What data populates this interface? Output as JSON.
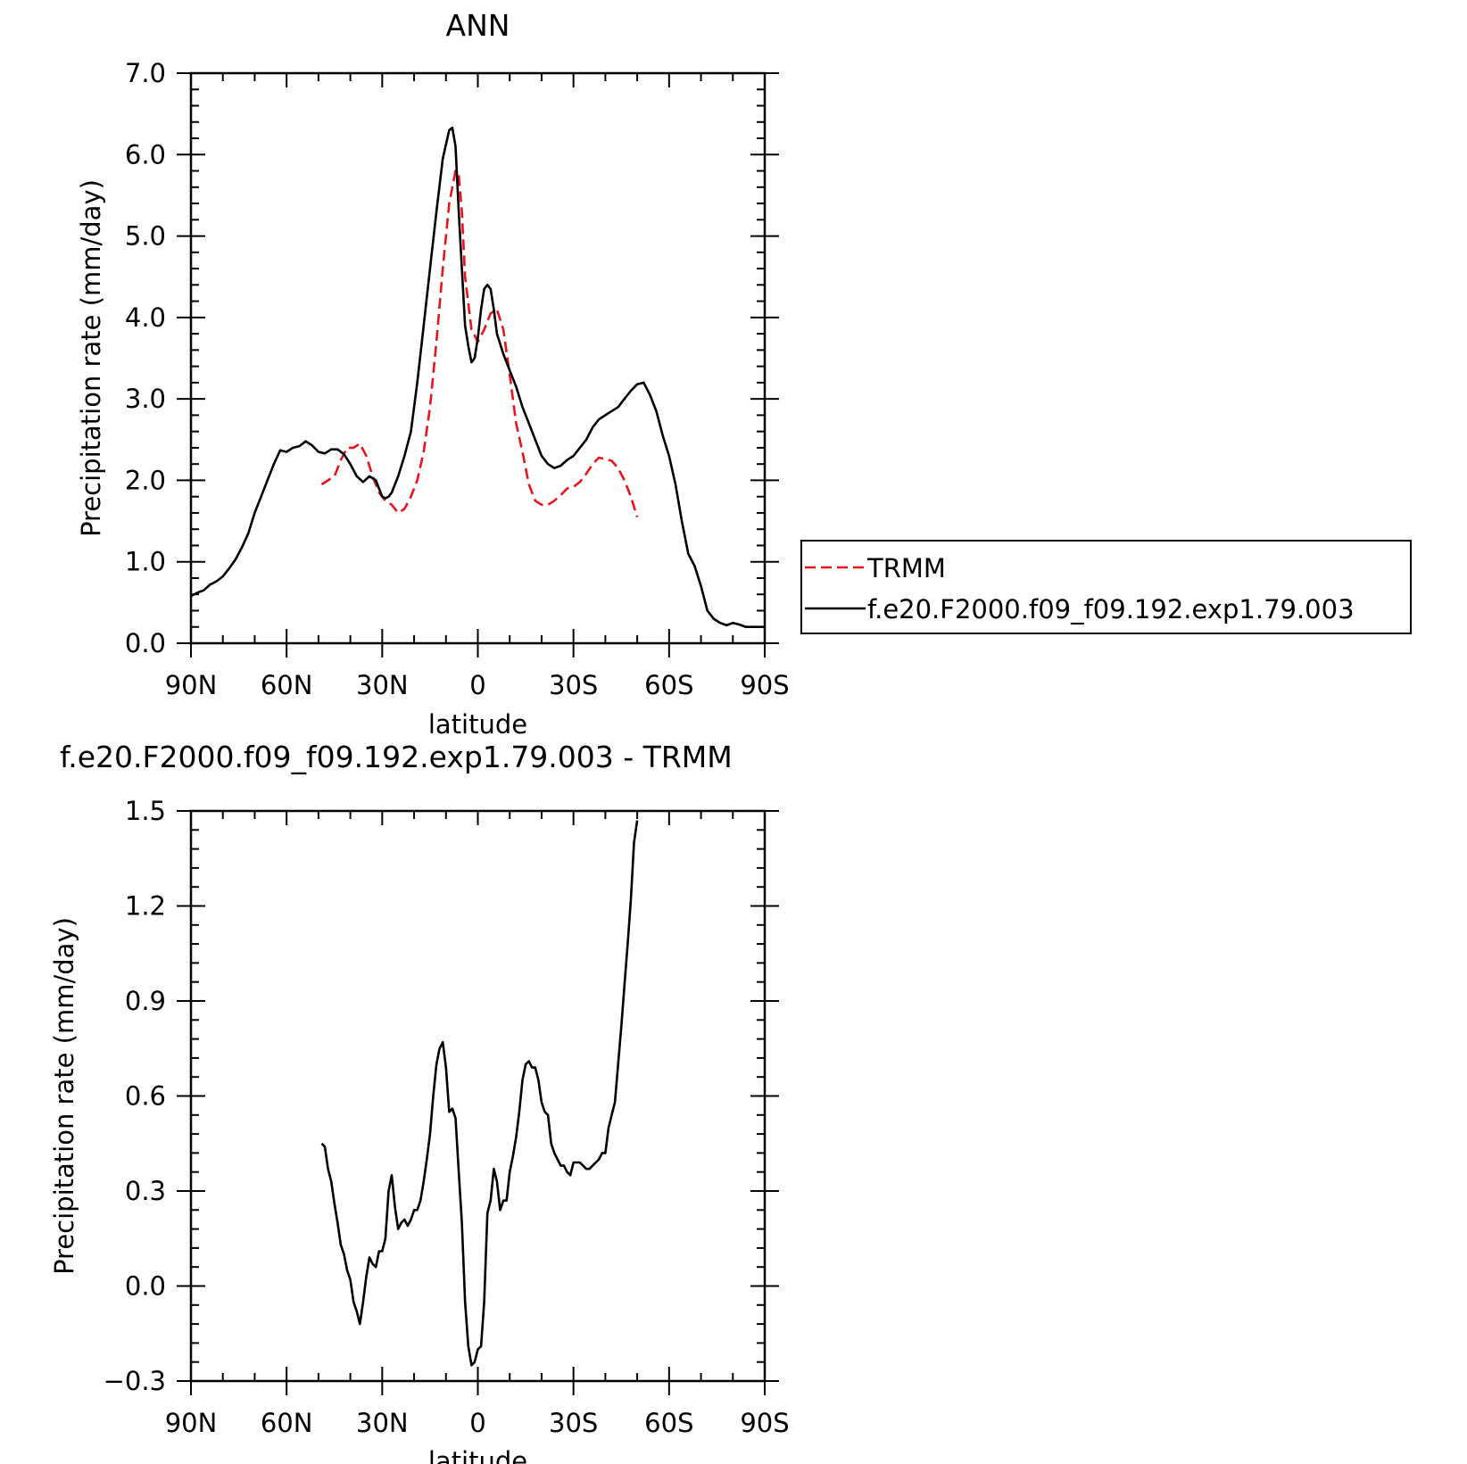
{
  "chart_data": [
    {
      "type": "line",
      "title": "ANN",
      "xlabel": "latitude",
      "ylabel": "Precipitation rate (mm/day)",
      "xlim": [
        90,
        -90
      ],
      "ylim": [
        0,
        7
      ],
      "x_ticks": [
        {
          "v": 90,
          "label": "90N"
        },
        {
          "v": 60,
          "label": "60N"
        },
        {
          "v": 30,
          "label": "30N"
        },
        {
          "v": 0,
          "label": "0"
        },
        {
          "v": -30,
          "label": "30S"
        },
        {
          "v": -60,
          "label": "60S"
        },
        {
          "v": -90,
          "label": "90S"
        }
      ],
      "y_ticks": [
        {
          "v": 0,
          "label": "0.0"
        },
        {
          "v": 1,
          "label": "1.0"
        },
        {
          "v": 2,
          "label": "2.0"
        },
        {
          "v": 3,
          "label": "3.0"
        },
        {
          "v": 4,
          "label": "4.0"
        },
        {
          "v": 5,
          "label": "5.0"
        },
        {
          "v": 6,
          "label": "6.0"
        },
        {
          "v": 7,
          "label": "7.0"
        }
      ],
      "legend": "right",
      "series": [
        {
          "name": "TRMM",
          "color": "#e8141c",
          "dash": true,
          "x": [
            49,
            47,
            45,
            43,
            41,
            39,
            37,
            35,
            33,
            31,
            29,
            27,
            25,
            23,
            21,
            19,
            17,
            15,
            13,
            11,
            9,
            7,
            6,
            5,
            4,
            2,
            0,
            -2,
            -4,
            -6,
            -8,
            -10,
            -12,
            -14,
            -16,
            -18,
            -20,
            -22,
            -24,
            -26,
            -28,
            -30,
            -32,
            -34,
            -36,
            -38,
            -40,
            -42,
            -44,
            -46,
            -48,
            -50
          ],
          "y": [
            1.95,
            2.0,
            2.05,
            2.25,
            2.4,
            2.4,
            2.45,
            2.3,
            2.05,
            1.85,
            1.75,
            1.7,
            1.6,
            1.65,
            1.8,
            2.0,
            2.35,
            2.9,
            3.7,
            4.6,
            5.4,
            5.8,
            5.75,
            5.3,
            4.5,
            3.85,
            3.7,
            3.85,
            4.05,
            4.1,
            3.85,
            3.3,
            2.7,
            2.35,
            1.95,
            1.75,
            1.7,
            1.7,
            1.75,
            1.82,
            1.9,
            1.92,
            1.98,
            2.08,
            2.2,
            2.28,
            2.26,
            2.24,
            2.15,
            2.0,
            1.8,
            1.55
          ]
        },
        {
          "name": "f.e20.F2000.f09_f09.192.exp1.79.003",
          "color": "#000000",
          "dash": false,
          "x": [
            90,
            88,
            86,
            84,
            82,
            80,
            78,
            76,
            74,
            72,
            70,
            68,
            66,
            64,
            62,
            60,
            58,
            56,
            54,
            52,
            50,
            48,
            46,
            44,
            42,
            40,
            38,
            36,
            34,
            32,
            31,
            30,
            29,
            28,
            27,
            26,
            25,
            23,
            21,
            19,
            17,
            15,
            13,
            11,
            9,
            8,
            7,
            6,
            5,
            4,
            3,
            2,
            1,
            0,
            -1,
            -2,
            -3,
            -4,
            -5,
            -6,
            -8,
            -10,
            -12,
            -14,
            -16,
            -18,
            -20,
            -22,
            -24,
            -26,
            -28,
            -30,
            -32,
            -34,
            -36,
            -38,
            -40,
            -42,
            -44,
            -46,
            -48,
            -50,
            -52,
            -54,
            -56,
            -58,
            -60,
            -62,
            -64,
            -66,
            -68,
            -70,
            -72,
            -74,
            -76,
            -78,
            -80,
            -82,
            -84,
            -86,
            -88,
            -90
          ],
          "y": [
            0.58,
            0.62,
            0.65,
            0.72,
            0.76,
            0.82,
            0.92,
            1.03,
            1.18,
            1.35,
            1.6,
            1.8,
            2.0,
            2.2,
            2.37,
            2.35,
            2.4,
            2.42,
            2.48,
            2.43,
            2.35,
            2.33,
            2.38,
            2.38,
            2.32,
            2.2,
            2.05,
            1.98,
            2.05,
            2.0,
            1.9,
            1.8,
            1.78,
            1.8,
            1.85,
            1.95,
            2.05,
            2.3,
            2.6,
            3.2,
            3.9,
            4.6,
            5.3,
            5.95,
            6.3,
            6.33,
            6.1,
            5.3,
            4.6,
            3.9,
            3.65,
            3.45,
            3.5,
            3.75,
            4.1,
            4.35,
            4.4,
            4.35,
            4.1,
            3.8,
            3.55,
            3.35,
            3.15,
            2.9,
            2.7,
            2.5,
            2.3,
            2.2,
            2.15,
            2.18,
            2.25,
            2.3,
            2.4,
            2.5,
            2.65,
            2.75,
            2.8,
            2.85,
            2.9,
            3.0,
            3.1,
            3.18,
            3.2,
            3.05,
            2.85,
            2.55,
            2.3,
            1.95,
            1.5,
            1.1,
            0.95,
            0.7,
            0.4,
            0.3,
            0.25,
            0.22,
            0.25,
            0.23,
            0.2,
            0.2,
            0.2,
            0.2
          ]
        }
      ]
    },
    {
      "type": "line",
      "title": "f.e20.F2000.f09_f09.192.exp1.79.003 - TRMM",
      "xlabel": "latitude",
      "ylabel": "Precipitation rate (mm/day)",
      "xlim": [
        90,
        -90
      ],
      "ylim": [
        -0.3,
        1.5
      ],
      "x_ticks": [
        {
          "v": 90,
          "label": "90N"
        },
        {
          "v": 60,
          "label": "60N"
        },
        {
          "v": 30,
          "label": "30N"
        },
        {
          "v": 0,
          "label": "0"
        },
        {
          "v": -30,
          "label": "30S"
        },
        {
          "v": -60,
          "label": "60S"
        },
        {
          "v": -90,
          "label": "90S"
        }
      ],
      "y_ticks": [
        {
          "v": -0.3,
          "label": "−0.3"
        },
        {
          "v": 0,
          "label": "0.0"
        },
        {
          "v": 0.3,
          "label": "0.3"
        },
        {
          "v": 0.6,
          "label": "0.6"
        },
        {
          "v": 0.9,
          "label": "0.9"
        },
        {
          "v": 1.2,
          "label": "1.2"
        },
        {
          "v": 1.5,
          "label": "1.5"
        }
      ],
      "series": [
        {
          "color": "#000000",
          "dash": false,
          "x": [
            49,
            48,
            47,
            46,
            45,
            44,
            43,
            42,
            41,
            40,
            39,
            38,
            37,
            36,
            35,
            34,
            33,
            32,
            31,
            30,
            29,
            28,
            27,
            26,
            25,
            24,
            23,
            22,
            21,
            20,
            19,
            18,
            17,
            16,
            15,
            14,
            13,
            12,
            11,
            10,
            9,
            8,
            7,
            6,
            5,
            4,
            3,
            2,
            1,
            0,
            -1,
            -2,
            -3,
            -4,
            -5,
            -6,
            -7,
            -8,
            -9,
            -10,
            -11,
            -12,
            -13,
            -14,
            -15,
            -16,
            -17,
            -18,
            -19,
            -20,
            -21,
            -22,
            -23,
            -24,
            -25,
            -26,
            -27,
            -28,
            -29,
            -30,
            -31,
            -32,
            -33,
            -34,
            -35,
            -36,
            -37,
            -38,
            -39,
            -40,
            -41,
            -42,
            -43,
            -44,
            -45,
            -46,
            -47,
            -48,
            -49,
            -50
          ],
          "y": [
            0.45,
            0.44,
            0.37,
            0.33,
            0.26,
            0.2,
            0.13,
            0.1,
            0.05,
            0.02,
            -0.05,
            -0.08,
            -0.12,
            -0.05,
            0.03,
            0.09,
            0.07,
            0.06,
            0.11,
            0.11,
            0.15,
            0.3,
            0.35,
            0.25,
            0.18,
            0.2,
            0.21,
            0.19,
            0.21,
            0.24,
            0.24,
            0.27,
            0.33,
            0.4,
            0.48,
            0.6,
            0.7,
            0.75,
            0.77,
            0.69,
            0.55,
            0.56,
            0.53,
            0.36,
            0.2,
            -0.05,
            -0.19,
            -0.25,
            -0.24,
            -0.2,
            -0.19,
            -0.05,
            0.23,
            0.27,
            0.37,
            0.33,
            0.24,
            0.27,
            0.27,
            0.36,
            0.41,
            0.47,
            0.55,
            0.65,
            0.7,
            0.71,
            0.69,
            0.69,
            0.65,
            0.58,
            0.55,
            0.54,
            0.45,
            0.42,
            0.4,
            0.38,
            0.38,
            0.36,
            0.35,
            0.39,
            0.39,
            0.39,
            0.38,
            0.37,
            0.37,
            0.38,
            0.39,
            0.4,
            0.42,
            0.42,
            0.5,
            0.54,
            0.58,
            0.7,
            0.82,
            0.95,
            1.08,
            1.22,
            1.4,
            1.47
          ]
        }
      ]
    }
  ]
}
